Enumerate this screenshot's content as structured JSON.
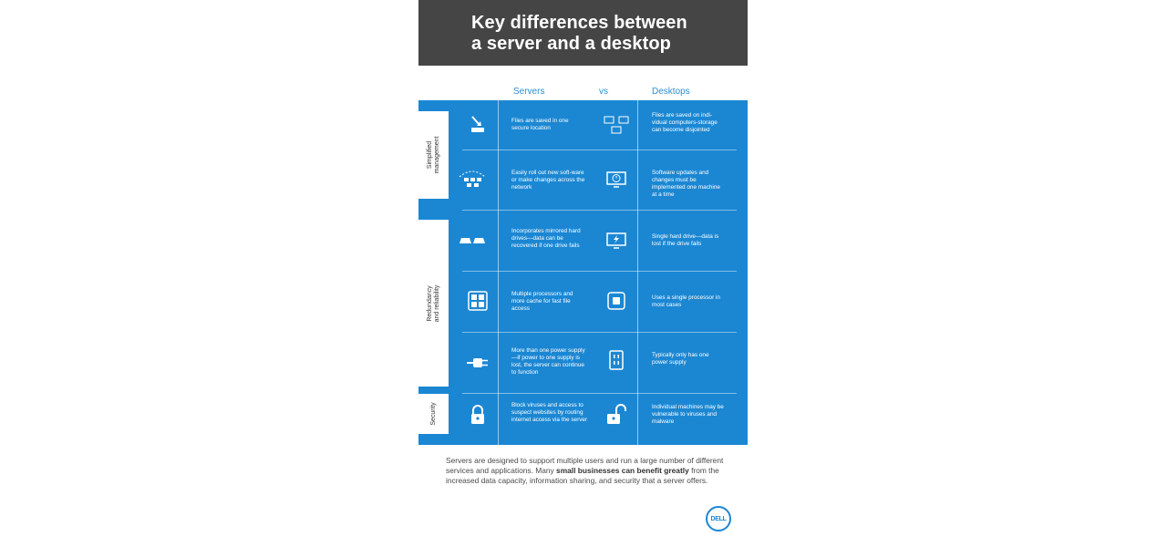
{
  "header": {
    "title_line1": "Key differences between",
    "title_line2": "a server and a desktop"
  },
  "columns": {
    "servers": "Servers",
    "vs": "vs",
    "desktops": "Desktops"
  },
  "categories": [
    {
      "label_line1": "Simplified",
      "label_line2": "management"
    },
    {
      "label_line1": "Redundancy",
      "label_line2": "and reliability"
    },
    {
      "label_line1": "Security",
      "label_line2": ""
    }
  ],
  "rows": [
    {
      "server_icon": "storage-arrow-icon",
      "server_text": "Files are saved in one secure location",
      "desktop_icon": "multiple-monitors-icon",
      "desktop_text": "Files are saved on indi-vidual computers-storage can become disjointed"
    },
    {
      "server_icon": "network-rollout-icon",
      "server_text": "Easily roll out new soft-ware or make changes across the network",
      "desktop_icon": "monitor-clock-icon",
      "desktop_text": "Software updates and changes must be implemented one machine at a time"
    },
    {
      "server_icon": "mirrored-drives-icon",
      "server_text": "Incorporates mirrored hard drives—data can be recovered if one drive fails",
      "desktop_icon": "monitor-lightning-icon",
      "desktop_text": "Single hard drive—data is lost if the drive fails"
    },
    {
      "server_icon": "multi-processor-icon",
      "server_text": "Multiple processors and more cache for fast file access",
      "desktop_icon": "single-processor-icon",
      "desktop_text": "Uses a single processor in most cases"
    },
    {
      "server_icon": "power-plug-icon",
      "server_text": "More than one power supply—if power to one supply is lost, the server can continue to function",
      "desktop_icon": "power-outlet-icon",
      "desktop_text": "Typically only has one power supply"
    },
    {
      "server_icon": "padlock-closed-icon",
      "server_text": "Block viruses and access to suspect websites by routing internet access via the server",
      "desktop_icon": "padlock-open-icon",
      "desktop_text": "Individual machines may be vulnerable to viruses and malware"
    }
  ],
  "footer": {
    "text_before": "Servers are designed to support multiple users and run a large number of different services and applications. Many ",
    "text_bold": "small businesses can benefit greatly",
    "text_after": " from the increased data capacity, information sharing, and security that a server offers."
  },
  "logo": {
    "text": "DELL",
    "color": "#1b87d3"
  },
  "colors": {
    "accent": "#1b87d3",
    "header_bg": "#454545",
    "column_header": "#2b8fd6"
  }
}
